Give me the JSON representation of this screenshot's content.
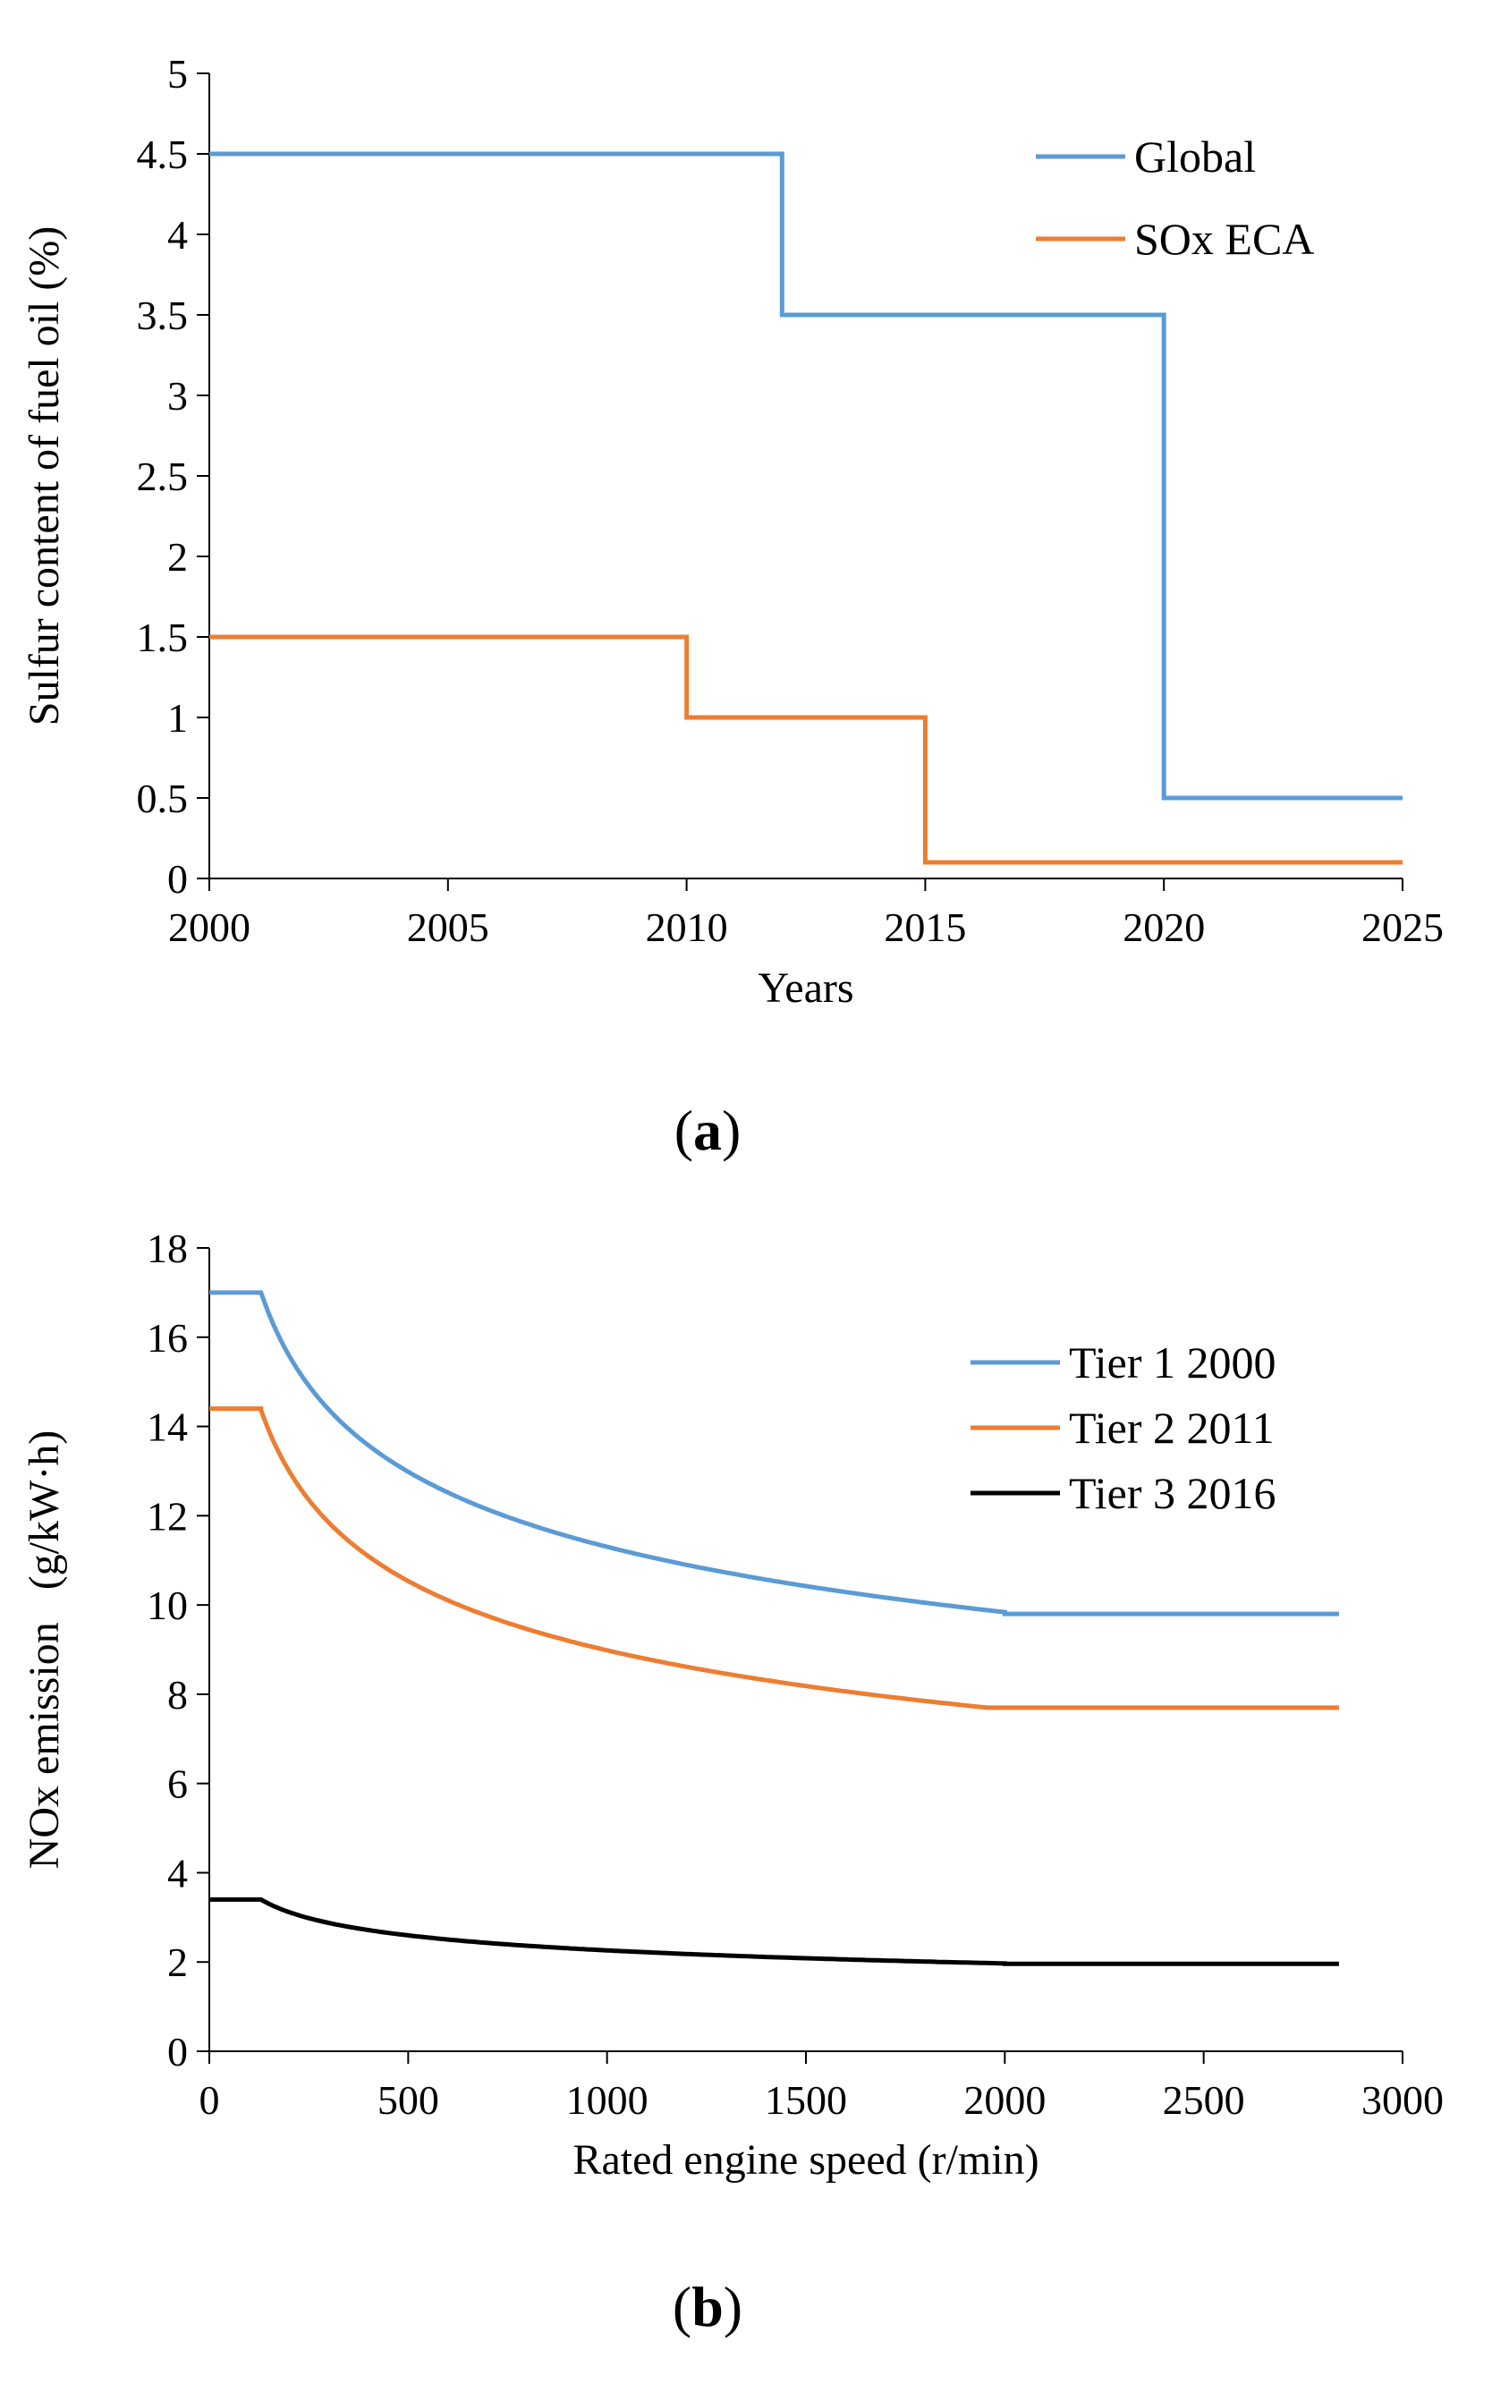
{
  "chart_data": [
    {
      "panel_label": "a",
      "type": "line",
      "step": true,
      "xlabel": "Years",
      "ylabel": "Sulfur content of fuel oil (%)",
      "xlim": [
        2000,
        2025
      ],
      "ylim": [
        0,
        5
      ],
      "x_ticks": [
        2000,
        2005,
        2010,
        2015,
        2020,
        2025
      ],
      "y_ticks": [
        0,
        0.5,
        1,
        1.5,
        2,
        2.5,
        3,
        3.5,
        4,
        4.5,
        5
      ],
      "legend_position": "top-right",
      "series": [
        {
          "name": "Global",
          "color": "#5b9bd5",
          "points": [
            [
              2000,
              4.5
            ],
            [
              2012,
              4.5
            ],
            [
              2012,
              3.5
            ],
            [
              2020,
              3.5
            ],
            [
              2020,
              0.5
            ],
            [
              2025,
              0.5
            ]
          ]
        },
        {
          "name": "SOx ECA",
          "color": "#ed7d31",
          "points": [
            [
              2000,
              1.5
            ],
            [
              2010,
              1.5
            ],
            [
              2010,
              1.0
            ],
            [
              2015,
              1.0
            ],
            [
              2015,
              0.1
            ],
            [
              2025,
              0.1
            ]
          ]
        }
      ]
    },
    {
      "panel_label": "b",
      "type": "line",
      "xlabel": "Rated engine speed (r/min)",
      "ylabel": "NOx emission   (g/kW·h)",
      "xlim": [
        0,
        3000
      ],
      "ylim": [
        0,
        18
      ],
      "x_ticks": [
        0,
        500,
        1000,
        1500,
        2000,
        2500,
        3000
      ],
      "y_ticks": [
        0,
        2,
        4,
        6,
        8,
        10,
        12,
        14,
        16,
        18
      ],
      "legend_position": "top-right",
      "series": [
        {
          "name": "Tier 1 2000",
          "color": "#5b9bd5",
          "formula": {
            "low_value": 17.0,
            "coef": 45,
            "exp": -0.2,
            "high_value": 9.8,
            "n_low": 130,
            "n_high": 2000,
            "x_end": 2840
          }
        },
        {
          "name": "Tier 2 2011",
          "color": "#ed7d31",
          "formula": {
            "low_value": 14.4,
            "coef": 44,
            "exp": -0.23,
            "high_value": 7.7,
            "n_low": 130,
            "n_high": 2000,
            "x_end": 2840
          }
        },
        {
          "name": "Tier 3 2016",
          "color": "#000000",
          "formula": {
            "low_value": 3.4,
            "coef": 9,
            "exp": -0.2,
            "high_value": 1.96,
            "n_low": 130,
            "n_high": 2000,
            "x_end": 2840
          }
        }
      ]
    }
  ]
}
